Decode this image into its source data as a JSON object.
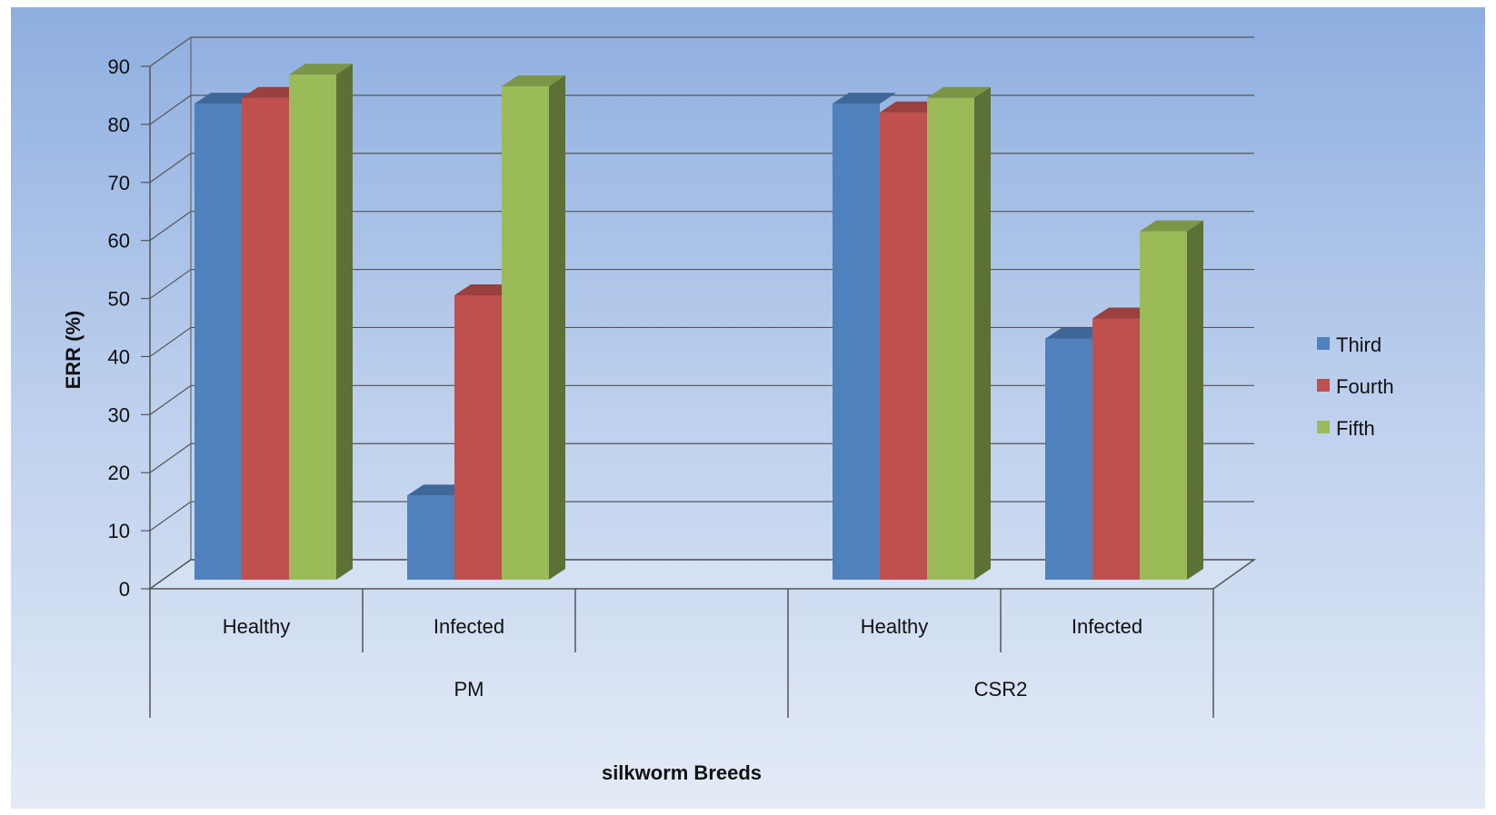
{
  "chart_data": {
    "type": "bar",
    "title": "",
    "xlabel": "silkworm Breeds",
    "ylabel": "ERR (%)",
    "ylim": [
      0,
      90
    ],
    "yticks": [
      0,
      10,
      20,
      30,
      40,
      50,
      60,
      70,
      80,
      90
    ],
    "grid": true,
    "legend_position": "right",
    "groups": [
      {
        "label": "PM",
        "categories": [
          "Healthy",
          "Infected",
          ""
        ]
      },
      {
        "label": "CSR2",
        "categories": [
          "Healthy",
          "Infected"
        ]
      }
    ],
    "categories": [
      "Healthy",
      "Infected",
      "",
      "Healthy",
      "Infected"
    ],
    "series": [
      {
        "name": "Third",
        "color": "#4f81bd",
        "values": [
          82,
          14.5,
          null,
          82,
          41.5
        ]
      },
      {
        "name": "Fourth",
        "color": "#c0504d",
        "values": [
          83,
          49,
          null,
          80.5,
          45
        ]
      },
      {
        "name": "Fifth",
        "color": "#9bbb59",
        "values": [
          87,
          85,
          null,
          83,
          60
        ]
      }
    ]
  }
}
